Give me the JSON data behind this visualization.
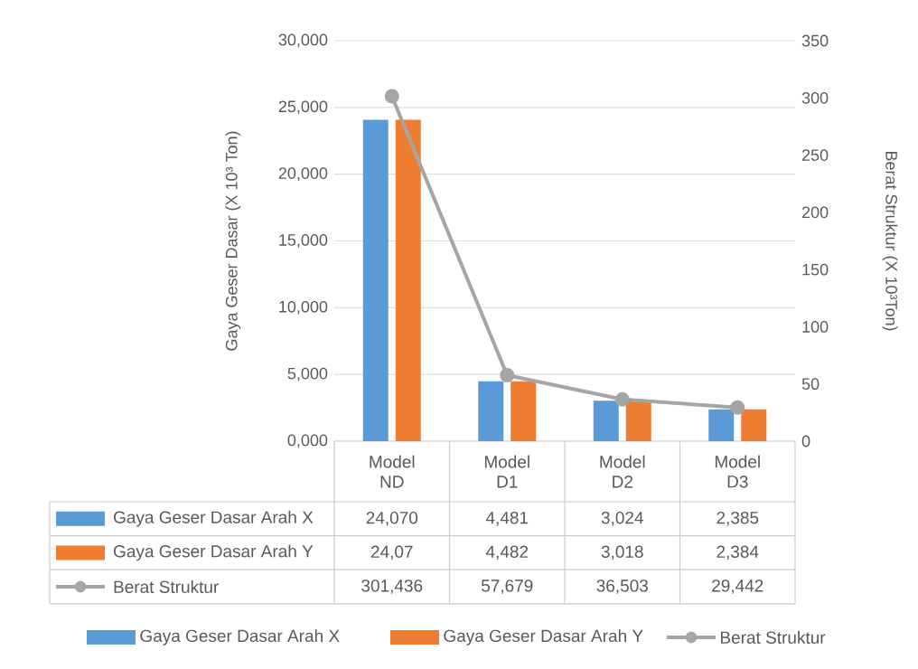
{
  "chart_data": {
    "type": "bar",
    "ylabel": "Gaya Geser Dasar (X 10³ Ton)",
    "y2label": "Berat Struktur (X 10³Ton)",
    "categories": [
      "Model ND",
      "Model D1",
      "Model D2",
      "Model D3"
    ],
    "series": [
      {
        "name": "Gaya Geser Dasar Arah X",
        "color": "#5b9bd5",
        "values": [
          24.07,
          4.481,
          3.024,
          2.385
        ],
        "value_labels": [
          "24,070",
          "4,481",
          "3,024",
          "2,385"
        ]
      },
      {
        "name": "Gaya Geser Dasar Arah Y",
        "color": "#ed7d31",
        "values": [
          24.07,
          4.482,
          3.018,
          2.384
        ],
        "value_labels": [
          "24,07",
          "4,482",
          "3,018",
          "2,384"
        ]
      },
      {
        "name": "Berat Struktur",
        "type": "line",
        "axis": "y2",
        "marker": "circle",
        "color": "#a5a5a5",
        "values": [
          301.436,
          57.679,
          36.503,
          29.442
        ],
        "value_labels": [
          "301,436",
          "57,679",
          "36,503",
          "29,442"
        ]
      }
    ],
    "ylim": [
      0,
      30
    ],
    "yticks": [
      {
        "value": 0,
        "label": "0,000"
      },
      {
        "value": 5,
        "label": "5,000"
      },
      {
        "value": 10,
        "label": "10,000"
      },
      {
        "value": 15,
        "label": "15,000"
      },
      {
        "value": 20,
        "label": "20,000"
      },
      {
        "value": 25,
        "label": "25,000"
      },
      {
        "value": 30,
        "label": "30,000"
      }
    ],
    "y2lim": [
      0,
      350
    ],
    "y2ticks": [
      0,
      50,
      100,
      150,
      200,
      250,
      300,
      350
    ],
    "grid": "y",
    "legend": "bottom"
  }
}
